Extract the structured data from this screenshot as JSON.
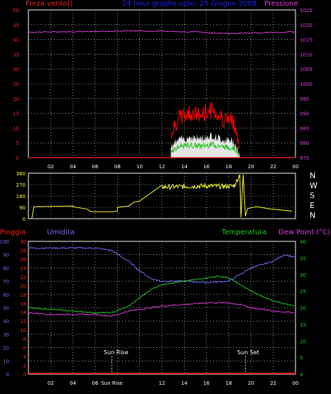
{
  "header": {
    "wind_label": "Forza vento()",
    "title": "24 hour graphs upto: 25 Giugno 2008",
    "pressure_label": "Pressione"
  },
  "middle": {
    "compass": [
      "N",
      "W",
      "S",
      "E",
      "N"
    ]
  },
  "bottom": {
    "rain_label": "Pioggia",
    "humidity_label": "Umidita",
    "temp_label": "Temperatura",
    "dew_label": "Dew Point (°C)",
    "sunrise_label": "Sun Rise",
    "sunset_label": "Sun Set"
  },
  "colors": {
    "wind": "#ff2020",
    "gust": "#ff0000",
    "windMin": "#20c020",
    "windFill": "#ffffff",
    "pressure": "#e040e0",
    "title": "#2020ff",
    "direction": "#ffff30",
    "rain": "#ff2020",
    "humidity": "#6f6fff",
    "temperature": "#20d020",
    "dewpoint": "#e040e0",
    "axis": "#ffffff",
    "grid": "#ffffff"
  },
  "chart_data": [
    {
      "type": "line",
      "name": "wind-pressure",
      "x_ticks": [
        "02",
        "04",
        "06",
        "08",
        "10",
        "12",
        "14",
        "16",
        "18",
        "20",
        "22",
        "00"
      ],
      "y_left_ticks": [
        0,
        5,
        10,
        15,
        20,
        25,
        30,
        35,
        40,
        45,
        50
      ],
      "y_right_ticks": [
        975,
        980,
        985,
        990,
        995,
        1000,
        1005,
        1010,
        1015,
        1020,
        1025
      ],
      "ylim_left": [
        0,
        50
      ],
      "ylim_right": [
        975,
        1025
      ],
      "series": [
        {
          "name": "Pressione",
          "hours": [
            0,
            3,
            6,
            9,
            12,
            15,
            18,
            21,
            24
          ],
          "values": [
            1017.5,
            1017.6,
            1017.7,
            1017.9,
            1017.8,
            1017.5,
            1017.0,
            1017.3,
            1017.6
          ]
        },
        {
          "name": "Forza vento()",
          "hours": [
            12.8,
            13.5,
            14.5,
            15.5,
            16.5,
            17.5,
            18.5,
            19.0
          ],
          "values": [
            8,
            12,
            14,
            13,
            15,
            12,
            11,
            1
          ]
        }
      ],
      "grid": true
    },
    {
      "type": "line",
      "name": "wind-direction",
      "y_ticks": [
        0,
        90,
        180,
        270,
        360
      ],
      "ylim": [
        0,
        360
      ],
      "series": [
        {
          "name": "direction",
          "hours": [
            0.3,
            0.5,
            4.0,
            4.0,
            5.3,
            5.5,
            5.8,
            7.5,
            8.0,
            8.0,
            9.0,
            9.5,
            10.0,
            12.0,
            14.0,
            16.0,
            17.5,
            18.5,
            19.0
          ],
          "values": [
            0,
            95,
            100,
            95,
            75,
            60,
            55,
            55,
            60,
            90,
            100,
            130,
            140,
            250,
            255,
            260,
            255,
            260,
            350
          ]
        }
      ]
    },
    {
      "type": "line",
      "name": "humidity-temperature",
      "x_ticks": [
        "02",
        "04",
        "06",
        "Sun Rise",
        "12",
        "14",
        "16",
        "18",
        "20",
        "22",
        "00"
      ],
      "y_humidity_ticks": [
        0,
        10,
        20,
        30,
        40,
        50,
        60,
        70,
        80,
        90,
        100
      ],
      "y_rain_ticks": [
        0,
        2,
        4,
        6,
        8,
        10,
        12,
        14,
        16,
        18,
        20,
        22,
        24,
        26,
        28,
        30
      ],
      "y_temp_ticks": [
        0,
        5,
        10,
        15,
        20,
        25,
        30,
        35,
        40
      ],
      "series": [
        {
          "name": "Umidita",
          "hours": [
            0,
            2,
            4,
            6,
            7.5,
            9,
            10,
            11,
            12,
            14,
            16,
            18,
            19,
            20,
            22,
            23,
            24
          ],
          "values": [
            95,
            95,
            95,
            95,
            93,
            85,
            78,
            72,
            70,
            70,
            69,
            70,
            75,
            80,
            85,
            90,
            88
          ]
        },
        {
          "name": "Temperatura",
          "hours": [
            0,
            2,
            4,
            6,
            7.5,
            9,
            10,
            11,
            12,
            14,
            16,
            17,
            18,
            19,
            20,
            22,
            24
          ],
          "values": [
            20,
            19.5,
            19,
            18.5,
            18.5,
            20.5,
            23,
            25.5,
            27,
            28,
            29,
            29.5,
            29,
            27,
            25,
            22,
            20.5
          ]
        },
        {
          "name": "Dew Point (°C)",
          "hours": [
            0,
            2,
            4,
            6,
            7.5,
            9,
            12,
            14,
            16,
            18,
            19,
            20,
            22,
            24
          ],
          "values": [
            18.5,
            18,
            18,
            18,
            17.5,
            19,
            20.5,
            21,
            21.5,
            21.5,
            21,
            20,
            19,
            18.5
          ]
        },
        {
          "name": "Pioggia",
          "hours": [
            0,
            24
          ],
          "values": [
            0,
            0
          ]
        }
      ],
      "annotations": [
        "Sun Rise",
        "Sun Set"
      ]
    }
  ]
}
